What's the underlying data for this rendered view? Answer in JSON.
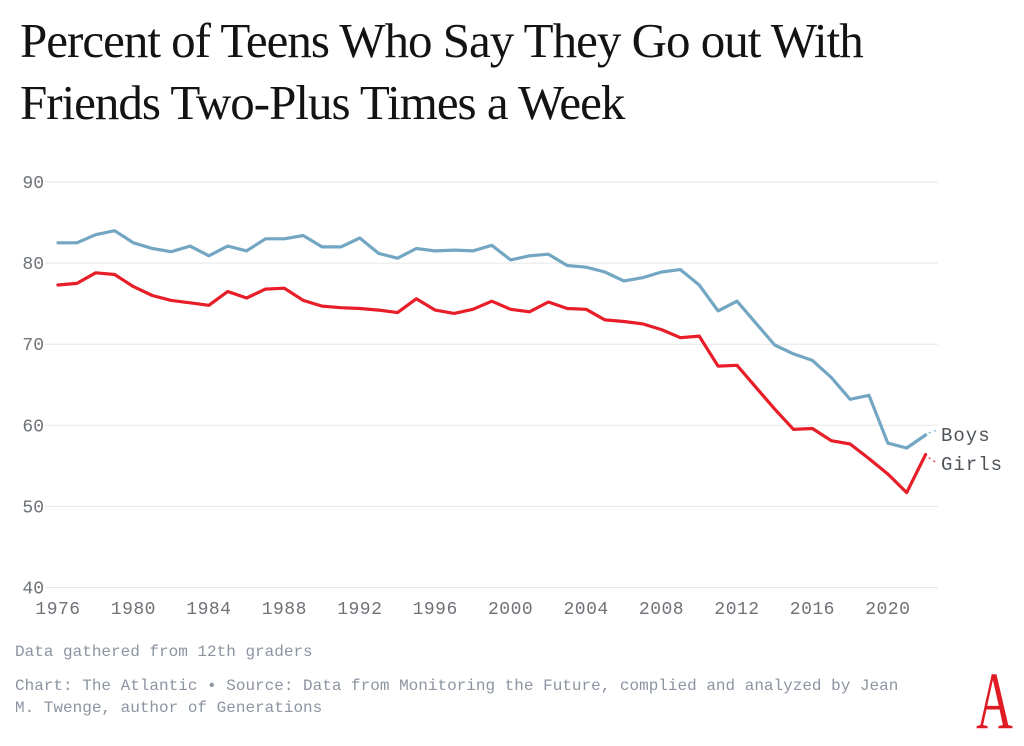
{
  "title": {
    "full": "Percent of Teens Who Say They Go out With Friends Two-Plus Times a Week",
    "lines": [
      "Percent of Teens Who Say They Go out With",
      "Friends Two-Plus Times a Week"
    ]
  },
  "chart_data": {
    "type": "line",
    "x_label": "",
    "y_label": "",
    "x": [
      1976,
      1977,
      1978,
      1979,
      1980,
      1981,
      1982,
      1983,
      1984,
      1985,
      1986,
      1987,
      1988,
      1989,
      1990,
      1991,
      1992,
      1993,
      1994,
      1995,
      1996,
      1997,
      1998,
      1999,
      2000,
      2001,
      2002,
      2003,
      2004,
      2005,
      2006,
      2007,
      2008,
      2009,
      2010,
      2011,
      2012,
      2013,
      2014,
      2015,
      2016,
      2017,
      2018,
      2019,
      2020,
      2021,
      2022
    ],
    "series": [
      {
        "name": "Boys",
        "color": "#73a6c2",
        "values": [
          82.5,
          82.5,
          83.5,
          84.0,
          82.5,
          81.8,
          81.4,
          82.1,
          80.9,
          82.1,
          81.5,
          83.0,
          83.0,
          83.4,
          82.0,
          82.0,
          83.1,
          81.2,
          80.6,
          81.8,
          81.5,
          81.6,
          81.5,
          82.2,
          80.4,
          80.9,
          81.1,
          79.7,
          79.5,
          78.9,
          77.8,
          78.2,
          78.9,
          79.2,
          77.3,
          74.1,
          75.3,
          72.6,
          69.9,
          68.8,
          68.0,
          65.9,
          63.2,
          63.7,
          57.8,
          57.2,
          58.8
        ]
      },
      {
        "name": "Girls",
        "color": "#e71d27",
        "values": [
          77.3,
          77.5,
          78.8,
          78.6,
          77.1,
          76.0,
          75.4,
          75.1,
          74.8,
          76.5,
          75.7,
          76.8,
          76.9,
          75.4,
          74.7,
          74.5,
          74.4,
          74.2,
          73.9,
          75.6,
          74.2,
          73.8,
          74.3,
          75.3,
          74.3,
          74.0,
          75.2,
          74.4,
          74.3,
          73.0,
          72.8,
          72.5,
          71.8,
          70.8,
          71.0,
          67.3,
          67.4,
          64.7,
          62.0,
          59.5,
          59.6,
          58.1,
          57.7,
          55.9,
          54.0,
          51.7,
          56.4
        ]
      }
    ],
    "ylim": [
      40,
      90
    ],
    "yticks": [
      40,
      50,
      60,
      70,
      80,
      90
    ],
    "xticks": [
      1976,
      1980,
      1984,
      1988,
      1992,
      1996,
      2000,
      2004,
      2008,
      2012,
      2016,
      2020
    ],
    "grid": "horizontal-only",
    "legend_position": "line-end-labels-right"
  },
  "axis_style": {
    "tick_color": "#6e7277",
    "grid_color": "#e7e7e7",
    "end_label_color": "#4f545a"
  },
  "footnote": "Data gathered from 12th graders",
  "credit": {
    "full": "Chart: The Atlantic • Source: Data from Monitoring the Future, complied and analyzed by Jean M. Twenge, author of Generations",
    "lines": [
      "Chart: The Atlantic • Source: Data from Monitoring the Future, complied and analyzed by Jean",
      "M. Twenge, author of Generations"
    ]
  },
  "logo": {
    "glyph": "A",
    "color": "#e01b24"
  }
}
